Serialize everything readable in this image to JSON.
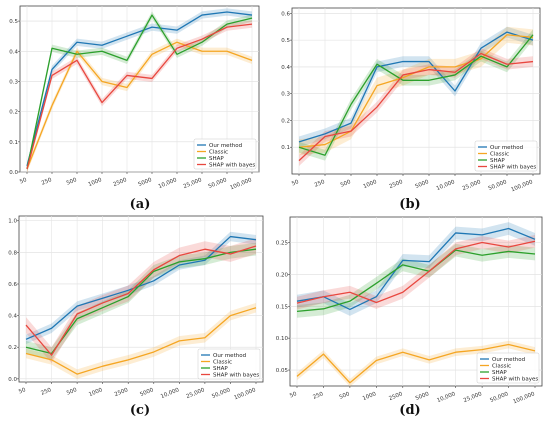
{
  "colors": {
    "our_method": "#1f77b4",
    "classic": "#f5a623",
    "shap": "#2ca02c",
    "shap_bayes": "#e8473f"
  },
  "legend_labels": [
    "Our method",
    "Classic",
    "SHAP",
    "SHAP with bayes"
  ],
  "chart_data": [
    {
      "type": "line",
      "panel": "(a)",
      "categories": [
        "50",
        "250",
        "500",
        "1000",
        "2500",
        "5000",
        "10,000",
        "25,000",
        "50,000",
        "100,000"
      ],
      "ylim": [
        0.0,
        0.55
      ],
      "yticks": [
        0.0,
        0.1,
        0.2,
        0.3,
        0.4,
        0.5
      ],
      "legend_position": "bottom-right",
      "series": [
        {
          "name": "Our method",
          "values": [
            0.02,
            0.34,
            0.43,
            0.42,
            0.45,
            0.48,
            0.47,
            0.52,
            0.53,
            0.52
          ],
          "band": 0.012
        },
        {
          "name": "Classic",
          "values": [
            0.01,
            0.22,
            0.4,
            0.3,
            0.28,
            0.39,
            0.43,
            0.4,
            0.4,
            0.37
          ],
          "band": 0.012
        },
        {
          "name": "SHAP",
          "values": [
            0.01,
            0.41,
            0.39,
            0.4,
            0.37,
            0.52,
            0.39,
            0.43,
            0.49,
            0.51
          ],
          "band": 0.012
        },
        {
          "name": "SHAP with bayes",
          "values": [
            0.01,
            0.32,
            0.37,
            0.23,
            0.32,
            0.31,
            0.41,
            0.44,
            0.48,
            0.49
          ],
          "band": 0.012
        }
      ]
    },
    {
      "type": "line",
      "panel": "(b)",
      "categories": [
        "50",
        "250",
        "500",
        "1000",
        "2500",
        "5000",
        "10,000",
        "25,000",
        "50,000",
        "100,000"
      ],
      "ylim": [
        0.0,
        0.62
      ],
      "yticks": [
        0.1,
        0.2,
        0.3,
        0.4,
        0.5,
        0.6
      ],
      "legend_position": "bottom-right",
      "series": [
        {
          "name": "Our method",
          "values": [
            0.12,
            0.15,
            0.19,
            0.4,
            0.42,
            0.42,
            0.31,
            0.47,
            0.53,
            0.5
          ],
          "band": 0.02
        },
        {
          "name": "Classic",
          "values": [
            0.1,
            0.11,
            0.16,
            0.33,
            0.36,
            0.4,
            0.4,
            0.43,
            0.52,
            0.51
          ],
          "band": 0.03
        },
        {
          "name": "SHAP",
          "values": [
            0.1,
            0.07,
            0.26,
            0.41,
            0.35,
            0.35,
            0.37,
            0.44,
            0.4,
            0.52
          ],
          "band": 0.02
        },
        {
          "name": "SHAP with bayes",
          "values": [
            0.05,
            0.14,
            0.16,
            0.25,
            0.37,
            0.39,
            0.38,
            0.45,
            0.41,
            0.42
          ],
          "band": 0.02
        }
      ]
    },
    {
      "type": "line",
      "panel": "(c)",
      "categories": [
        "50",
        "250",
        "500",
        "1000",
        "2500",
        "5000",
        "10,000",
        "25,000",
        "50,000",
        "100,000"
      ],
      "ylim": [
        -0.02,
        1.03
      ],
      "yticks": [
        0.0,
        0.2,
        0.4,
        0.6,
        0.8,
        1.0
      ],
      "legend_position": "bottom-right",
      "series": [
        {
          "name": "Our method",
          "values": [
            0.25,
            0.32,
            0.46,
            0.51,
            0.56,
            0.62,
            0.72,
            0.75,
            0.9,
            0.88
          ],
          "band": 0.03
        },
        {
          "name": "Classic",
          "values": [
            0.16,
            0.12,
            0.03,
            0.08,
            0.12,
            0.17,
            0.24,
            0.26,
            0.4,
            0.45
          ],
          "band": 0.03
        },
        {
          "name": "SHAP",
          "values": [
            0.2,
            0.16,
            0.38,
            0.45,
            0.52,
            0.68,
            0.74,
            0.76,
            0.8,
            0.82
          ],
          "band": 0.04
        },
        {
          "name": "SHAP with bayes",
          "values": [
            0.34,
            0.15,
            0.41,
            0.48,
            0.54,
            0.69,
            0.78,
            0.82,
            0.79,
            0.84
          ],
          "band": 0.05
        }
      ]
    },
    {
      "type": "line",
      "panel": "(d)",
      "categories": [
        "50",
        "250",
        "500",
        "1000",
        "2500",
        "5000",
        "10,000",
        "25,000",
        "50,000",
        "100,000"
      ],
      "ylim": [
        0.025,
        0.29
      ],
      "yticks": [
        0.05,
        0.1,
        0.15,
        0.2,
        0.25
      ],
      "legend_position": "bottom-right",
      "series": [
        {
          "name": "Our method",
          "values": [
            0.158,
            0.165,
            0.145,
            0.165,
            0.222,
            0.22,
            0.265,
            0.262,
            0.272,
            0.255
          ],
          "band": 0.01
        },
        {
          "name": "Classic",
          "values": [
            0.04,
            0.075,
            0.03,
            0.065,
            0.078,
            0.066,
            0.078,
            0.082,
            0.09,
            0.08
          ],
          "band": 0.006
        },
        {
          "name": "SHAP",
          "values": [
            0.142,
            0.146,
            0.158,
            0.186,
            0.215,
            0.205,
            0.238,
            0.23,
            0.236,
            0.232
          ],
          "band": 0.01
        },
        {
          "name": "SHAP with bayes",
          "values": [
            0.155,
            0.165,
            0.172,
            0.156,
            0.172,
            0.205,
            0.24,
            0.25,
            0.243,
            0.252
          ],
          "band": 0.01
        }
      ]
    }
  ]
}
